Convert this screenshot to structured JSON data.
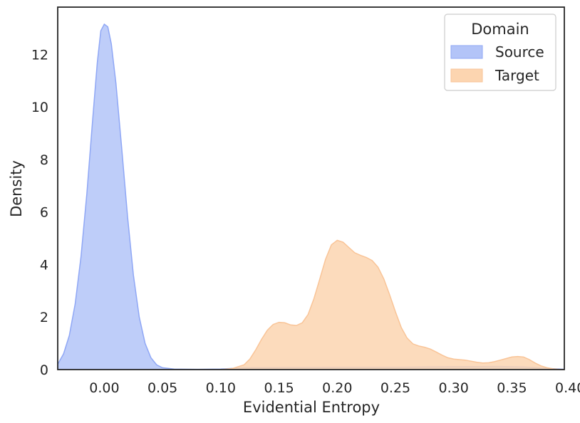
{
  "chart_data": {
    "type": "area",
    "title": "",
    "xlabel": "Evidential Entropy",
    "ylabel": "Density",
    "xlim": [
      -0.04,
      0.395
    ],
    "ylim": [
      0,
      13.8
    ],
    "xticks": [
      0.0,
      0.05,
      0.1,
      0.15,
      0.2,
      0.25,
      0.3,
      0.35,
      0.4
    ],
    "xtick_labels": [
      "0.00",
      "0.05",
      "0.10",
      "0.15",
      "0.20",
      "0.25",
      "0.30",
      "0.35",
      "0.40"
    ],
    "yticks": [
      0,
      2,
      4,
      6,
      8,
      10,
      12
    ],
    "ytick_labels": [
      "0",
      "2",
      "4",
      "6",
      "8",
      "10",
      "12"
    ],
    "grid": false,
    "legend": {
      "title": "Domain",
      "placement": "top-right",
      "entries": [
        "Source",
        "Target"
      ]
    },
    "series": [
      {
        "name": "Source",
        "color": "#8fa7f5",
        "fill": "#b3c4f8",
        "points": [
          [
            -0.04,
            0.2
          ],
          [
            -0.035,
            0.6
          ],
          [
            -0.03,
            1.3
          ],
          [
            -0.025,
            2.5
          ],
          [
            -0.02,
            4.3
          ],
          [
            -0.015,
            6.7
          ],
          [
            -0.01,
            9.5
          ],
          [
            -0.006,
            11.7
          ],
          [
            -0.003,
            12.9
          ],
          [
            0.0,
            13.15
          ],
          [
            0.003,
            13.05
          ],
          [
            0.006,
            12.4
          ],
          [
            0.01,
            10.9
          ],
          [
            0.015,
            8.4
          ],
          [
            0.02,
            5.8
          ],
          [
            0.025,
            3.6
          ],
          [
            0.03,
            2.0
          ],
          [
            0.035,
            1.0
          ],
          [
            0.04,
            0.45
          ],
          [
            0.045,
            0.18
          ],
          [
            0.05,
            0.07
          ],
          [
            0.06,
            0.02
          ],
          [
            0.08,
            0.01
          ],
          [
            0.1,
            0.02
          ],
          [
            0.12,
            0.07
          ],
          [
            0.15,
            0.08
          ],
          [
            0.2,
            0.09
          ],
          [
            0.25,
            0.09
          ],
          [
            0.3,
            0.11
          ],
          [
            0.34,
            0.12
          ],
          [
            0.36,
            0.1
          ],
          [
            0.38,
            0.05
          ],
          [
            0.395,
            0.01
          ]
        ]
      },
      {
        "name": "Target",
        "color": "#f9c497",
        "fill": "#fcd5b0",
        "points": [
          [
            0.1,
            0.0
          ],
          [
            0.11,
            0.04
          ],
          [
            0.12,
            0.18
          ],
          [
            0.125,
            0.4
          ],
          [
            0.13,
            0.75
          ],
          [
            0.135,
            1.15
          ],
          [
            0.14,
            1.5
          ],
          [
            0.145,
            1.72
          ],
          [
            0.15,
            1.8
          ],
          [
            0.155,
            1.78
          ],
          [
            0.16,
            1.7
          ],
          [
            0.165,
            1.68
          ],
          [
            0.17,
            1.78
          ],
          [
            0.175,
            2.1
          ],
          [
            0.18,
            2.7
          ],
          [
            0.185,
            3.45
          ],
          [
            0.19,
            4.2
          ],
          [
            0.195,
            4.75
          ],
          [
            0.2,
            4.92
          ],
          [
            0.205,
            4.85
          ],
          [
            0.21,
            4.65
          ],
          [
            0.215,
            4.45
          ],
          [
            0.22,
            4.35
          ],
          [
            0.225,
            4.27
          ],
          [
            0.23,
            4.15
          ],
          [
            0.235,
            3.9
          ],
          [
            0.24,
            3.45
          ],
          [
            0.245,
            2.85
          ],
          [
            0.25,
            2.2
          ],
          [
            0.255,
            1.6
          ],
          [
            0.26,
            1.2
          ],
          [
            0.265,
            0.98
          ],
          [
            0.27,
            0.9
          ],
          [
            0.275,
            0.85
          ],
          [
            0.28,
            0.78
          ],
          [
            0.285,
            0.67
          ],
          [
            0.29,
            0.55
          ],
          [
            0.295,
            0.45
          ],
          [
            0.3,
            0.4
          ],
          [
            0.305,
            0.38
          ],
          [
            0.31,
            0.36
          ],
          [
            0.315,
            0.32
          ],
          [
            0.32,
            0.28
          ],
          [
            0.325,
            0.25
          ],
          [
            0.33,
            0.26
          ],
          [
            0.335,
            0.3
          ],
          [
            0.34,
            0.36
          ],
          [
            0.345,
            0.42
          ],
          [
            0.35,
            0.48
          ],
          [
            0.355,
            0.5
          ],
          [
            0.36,
            0.48
          ],
          [
            0.365,
            0.38
          ],
          [
            0.37,
            0.25
          ],
          [
            0.375,
            0.14
          ],
          [
            0.38,
            0.07
          ],
          [
            0.385,
            0.03
          ],
          [
            0.39,
            0.01
          ],
          [
            0.395,
            0.0
          ]
        ]
      }
    ]
  }
}
